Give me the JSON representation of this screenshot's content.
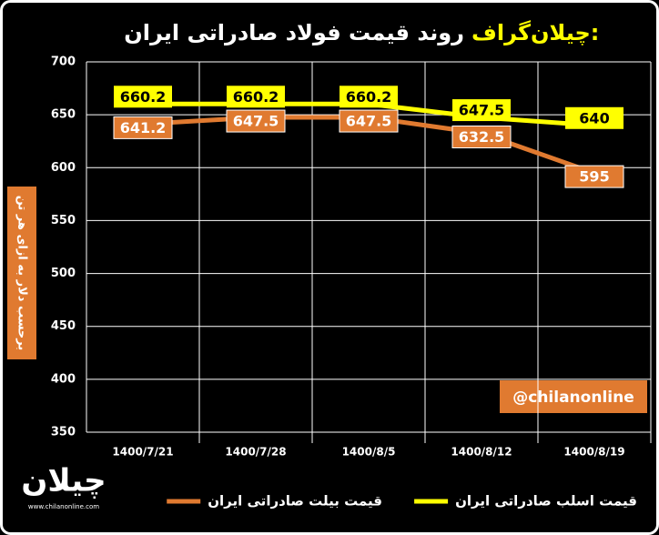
{
  "chart_data": {
    "type": "line",
    "title_prefix": "چیلان‌گراف:",
    "title": "روند قیمت فولاد صادراتی ایران",
    "y_label": "برحسب دلار به ازای هر تن",
    "watermark": "@chilanonline",
    "logo": "چیلان",
    "website": "www.chilanonline.com",
    "categories": [
      "1400/7/21",
      "1400/7/28",
      "1400/8/5",
      "1400/8/12",
      "1400/8/19"
    ],
    "series": [
      {
        "name": "قیمت اسلب صادراتی ایران",
        "color": "#ffff00",
        "values": [
          660.2,
          660.2,
          660.2,
          647.5,
          640
        ]
      },
      {
        "name": "قیمت بیلت صادراتی ایران",
        "color": "#e07a30",
        "values": [
          641.2,
          647.5,
          647.5,
          632.5,
          595
        ]
      }
    ],
    "ylim": [
      350,
      700
    ],
    "yticks": [
      350,
      400,
      450,
      500,
      550,
      600,
      650,
      700
    ],
    "grid": true
  }
}
